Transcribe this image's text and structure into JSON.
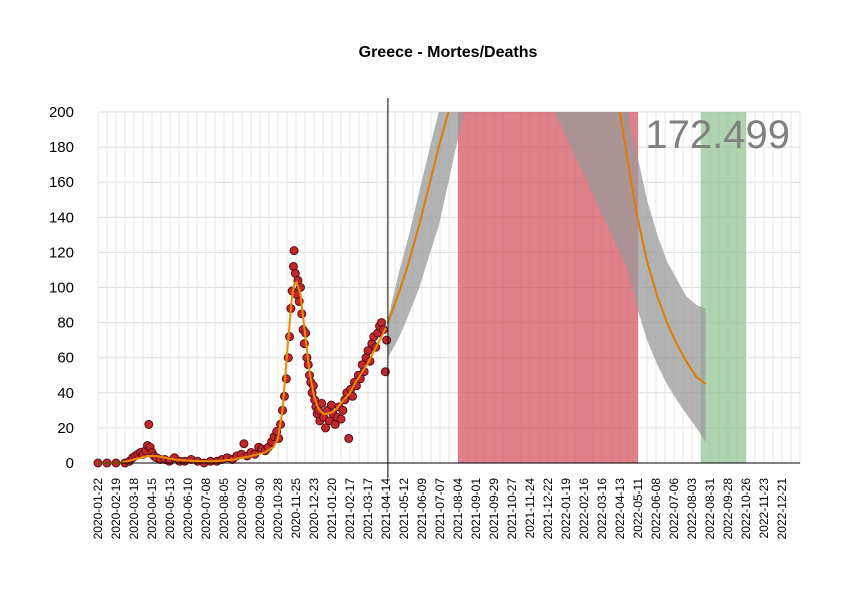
{
  "chart_data": {
    "type": "scatter",
    "title": "Greece - Mortes/Deaths",
    "annotation": "172.499",
    "ylim": [
      0,
      200
    ],
    "y_ticks": [
      0,
      20,
      40,
      60,
      80,
      100,
      120,
      140,
      160,
      180,
      200
    ],
    "x_ticks": [
      "2020-01-22",
      "2020-02-19",
      "2020-03-18",
      "2020-04-15",
      "2020-05-13",
      "2020-06-10",
      "2020-07-08",
      "2020-08-05",
      "2020-09-02",
      "2020-09-30",
      "2020-10-28",
      "2020-11-25",
      "2020-12-23",
      "2021-01-20",
      "2021-02-17",
      "2021-03-17",
      "2021-04-14",
      "2021-05-12",
      "2021-06-09",
      "2021-07-07",
      "2021-08-04",
      "2021-09-01",
      "2021-09-29",
      "2021-10-27",
      "2021-11-24",
      "2021-12-22",
      "2022-01-19",
      "2022-02-16",
      "2022-03-16",
      "2022-04-13",
      "2022-05-11",
      "2022-06-08",
      "2022-07-06",
      "2022-08-03",
      "2022-08-31",
      "2022-09-28",
      "2022-10-26",
      "2022-11-23",
      "2022-12-21"
    ],
    "x_range": [
      "2020-01-22",
      "2023-01-18"
    ],
    "grid": true,
    "today": "2021-04-17",
    "regions": [
      {
        "start": "2021-08-04",
        "end": "2022-05-11",
        "color": "#d24b55"
      },
      {
        "start": "2022-08-17",
        "end": "2022-10-26",
        "color": "#8fc08f"
      }
    ],
    "observed_daily_deaths": [
      [
        "2020-01-22",
        0
      ],
      [
        "2020-02-05",
        0
      ],
      [
        "2020-02-19",
        0
      ],
      [
        "2020-03-04",
        0
      ],
      [
        "2020-03-11",
        1
      ],
      [
        "2020-03-16",
        3
      ],
      [
        "2020-03-20",
        4
      ],
      [
        "2020-03-24",
        5
      ],
      [
        "2020-03-28",
        6
      ],
      [
        "2020-04-01",
        5
      ],
      [
        "2020-04-05",
        7
      ],
      [
        "2020-04-08",
        10
      ],
      [
        "2020-04-10",
        22
      ],
      [
        "2020-04-12",
        9
      ],
      [
        "2020-04-15",
        6
      ],
      [
        "2020-04-18",
        4
      ],
      [
        "2020-04-22",
        3
      ],
      [
        "2020-04-28",
        2
      ],
      [
        "2020-05-05",
        2
      ],
      [
        "2020-05-12",
        1
      ],
      [
        "2020-05-20",
        3
      ],
      [
        "2020-05-28",
        1
      ],
      [
        "2020-06-05",
        1
      ],
      [
        "2020-06-15",
        2
      ],
      [
        "2020-06-25",
        1
      ],
      [
        "2020-07-05",
        0
      ],
      [
        "2020-07-15",
        1
      ],
      [
        "2020-07-25",
        1
      ],
      [
        "2020-08-02",
        2
      ],
      [
        "2020-08-10",
        3
      ],
      [
        "2020-08-18",
        2
      ],
      [
        "2020-08-25",
        4
      ],
      [
        "2020-09-01",
        5
      ],
      [
        "2020-09-05",
        11
      ],
      [
        "2020-09-10",
        4
      ],
      [
        "2020-09-16",
        6
      ],
      [
        "2020-09-22",
        5
      ],
      [
        "2020-09-28",
        9
      ],
      [
        "2020-10-03",
        8
      ],
      [
        "2020-10-08",
        7
      ],
      [
        "2020-10-13",
        9
      ],
      [
        "2020-10-18",
        12
      ],
      [
        "2020-10-22",
        15
      ],
      [
        "2020-10-26",
        18
      ],
      [
        "2020-10-29",
        14
      ],
      [
        "2020-11-01",
        22
      ],
      [
        "2020-11-04",
        30
      ],
      [
        "2020-11-07",
        38
      ],
      [
        "2020-11-10",
        48
      ],
      [
        "2020-11-13",
        60
      ],
      [
        "2020-11-15",
        72
      ],
      [
        "2020-11-17",
        88
      ],
      [
        "2020-11-19",
        98
      ],
      [
        "2020-11-21",
        112
      ],
      [
        "2020-11-22",
        121
      ],
      [
        "2020-11-24",
        108
      ],
      [
        "2020-11-26",
        96
      ],
      [
        "2020-11-28",
        104
      ],
      [
        "2020-11-30",
        92
      ],
      [
        "2020-12-02",
        100
      ],
      [
        "2020-12-04",
        85
      ],
      [
        "2020-12-06",
        76
      ],
      [
        "2020-12-08",
        68
      ],
      [
        "2020-12-10",
        74
      ],
      [
        "2020-12-12",
        60
      ],
      [
        "2020-12-14",
        56
      ],
      [
        "2020-12-16",
        50
      ],
      [
        "2020-12-18",
        46
      ],
      [
        "2020-12-20",
        40
      ],
      [
        "2020-12-22",
        44
      ],
      [
        "2020-12-24",
        36
      ],
      [
        "2020-12-26",
        32
      ],
      [
        "2020-12-28",
        28
      ],
      [
        "2020-12-30",
        30
      ],
      [
        "2021-01-01",
        24
      ],
      [
        "2021-01-04",
        34
      ],
      [
        "2021-01-07",
        26
      ],
      [
        "2021-01-10",
        20
      ],
      [
        "2021-01-13",
        30
      ],
      [
        "2021-01-16",
        24
      ],
      [
        "2021-01-19",
        33
      ],
      [
        "2021-01-22",
        28
      ],
      [
        "2021-01-25",
        22
      ],
      [
        "2021-01-28",
        26
      ],
      [
        "2021-01-31",
        32
      ],
      [
        "2021-02-03",
        25
      ],
      [
        "2021-02-06",
        30
      ],
      [
        "2021-02-09",
        36
      ],
      [
        "2021-02-12",
        40
      ],
      [
        "2021-02-15",
        14
      ],
      [
        "2021-02-18",
        42
      ],
      [
        "2021-02-21",
        38
      ],
      [
        "2021-02-24",
        46
      ],
      [
        "2021-02-27",
        44
      ],
      [
        "2021-03-02",
        50
      ],
      [
        "2021-03-05",
        48
      ],
      [
        "2021-03-08",
        56
      ],
      [
        "2021-03-11",
        52
      ],
      [
        "2021-03-14",
        60
      ],
      [
        "2021-03-17",
        64
      ],
      [
        "2021-03-20",
        58
      ],
      [
        "2021-03-23",
        68
      ],
      [
        "2021-03-26",
        72
      ],
      [
        "2021-03-29",
        66
      ],
      [
        "2021-04-01",
        74
      ],
      [
        "2021-04-04",
        78
      ],
      [
        "2021-04-07",
        80
      ],
      [
        "2021-04-10",
        76
      ],
      [
        "2021-04-13",
        52
      ],
      [
        "2021-04-15",
        70
      ]
    ],
    "trend_line": [
      [
        "2020-01-22",
        0
      ],
      [
        "2020-02-26",
        0
      ],
      [
        "2020-03-18",
        2
      ],
      [
        "2020-04-08",
        4
      ],
      [
        "2020-04-22",
        4
      ],
      [
        "2020-05-20",
        2
      ],
      [
        "2020-06-24",
        1
      ],
      [
        "2020-07-22",
        1
      ],
      [
        "2020-08-19",
        2
      ],
      [
        "2020-09-16",
        4
      ],
      [
        "2020-10-07",
        6
      ],
      [
        "2020-10-21",
        9
      ],
      [
        "2020-10-28",
        14
      ],
      [
        "2020-11-04",
        30
      ],
      [
        "2020-11-11",
        62
      ],
      [
        "2020-11-18",
        92
      ],
      [
        "2020-11-22",
        102
      ],
      [
        "2020-11-26",
        103
      ],
      [
        "2020-12-02",
        96
      ],
      [
        "2020-12-09",
        74
      ],
      [
        "2020-12-16",
        52
      ],
      [
        "2020-12-23",
        38
      ],
      [
        "2020-12-30",
        31
      ],
      [
        "2021-01-06",
        28
      ],
      [
        "2021-01-13",
        28
      ],
      [
        "2021-01-20",
        29
      ],
      [
        "2021-01-27",
        31
      ],
      [
        "2021-02-03",
        34
      ],
      [
        "2021-02-10",
        37
      ],
      [
        "2021-02-17",
        40
      ],
      [
        "2021-02-24",
        45
      ],
      [
        "2021-03-03",
        49
      ],
      [
        "2021-03-10",
        53
      ],
      [
        "2021-03-17",
        57
      ],
      [
        "2021-03-24",
        62
      ],
      [
        "2021-03-31",
        67
      ],
      [
        "2021-04-07",
        72
      ],
      [
        "2021-04-14",
        77
      ]
    ],
    "projection_line": [
      [
        "2021-04-17",
        80
      ],
      [
        "2021-05-05",
        98
      ],
      [
        "2021-05-20",
        115
      ],
      [
        "2021-06-05",
        136
      ],
      [
        "2021-06-20",
        158
      ],
      [
        "2021-07-05",
        180
      ],
      [
        "2021-07-20",
        200
      ],
      [
        "2022-04-13",
        200
      ],
      [
        "2022-04-25",
        172
      ],
      [
        "2022-05-10",
        140
      ],
      [
        "2022-05-25",
        115
      ],
      [
        "2022-06-10",
        95
      ],
      [
        "2022-06-25",
        80
      ],
      [
        "2022-07-10",
        68
      ],
      [
        "2022-07-25",
        58
      ],
      [
        "2022-08-10",
        49
      ],
      [
        "2022-08-24",
        45
      ]
    ],
    "projection_band": [
      [
        "2021-04-17",
        60,
        82
      ],
      [
        "2021-05-05",
        72,
        110
      ],
      [
        "2021-05-20",
        85,
        130
      ],
      [
        "2021-06-05",
        100,
        155
      ],
      [
        "2021-06-20",
        118,
        178
      ],
      [
        "2021-07-05",
        135,
        200
      ],
      [
        "2021-07-20",
        160,
        200
      ],
      [
        "2021-08-04",
        185,
        200
      ],
      [
        "2021-08-15",
        200,
        200
      ],
      [
        "2022-01-01",
        200,
        200
      ],
      [
        "2022-04-13",
        120,
        200
      ],
      [
        "2022-04-25",
        110,
        200
      ],
      [
        "2022-05-10",
        88,
        175
      ],
      [
        "2022-05-25",
        70,
        150
      ],
      [
        "2022-06-10",
        56,
        130
      ],
      [
        "2022-06-25",
        45,
        115
      ],
      [
        "2022-07-10",
        36,
        105
      ],
      [
        "2022-07-25",
        28,
        95
      ],
      [
        "2022-08-10",
        20,
        90
      ],
      [
        "2022-08-24",
        12,
        88
      ]
    ]
  }
}
